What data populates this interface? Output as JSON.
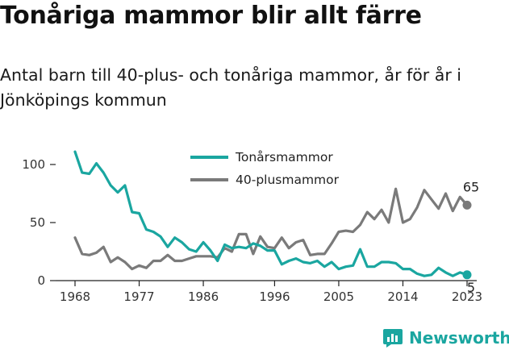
{
  "header": {
    "title": "Tonåriga mammor blir allt färre",
    "subtitle": "Antal barn till 40-plus- och tonåriga mammor, år för år i Jönköpings kommun"
  },
  "brand": {
    "name": "Newsworthy",
    "icon": "newsworthy-logo-icon",
    "color": "#1aa6a0"
  },
  "chart_data": {
    "type": "line",
    "x": [
      1968,
      1969,
      1970,
      1971,
      1972,
      1973,
      1974,
      1975,
      1976,
      1977,
      1978,
      1979,
      1980,
      1981,
      1982,
      1983,
      1984,
      1985,
      1986,
      1987,
      1988,
      1989,
      1990,
      1991,
      1992,
      1993,
      1994,
      1995,
      1996,
      1997,
      1998,
      1999,
      2000,
      2001,
      2002,
      2003,
      2004,
      2005,
      2006,
      2007,
      2008,
      2009,
      2010,
      2011,
      2012,
      2013,
      2014,
      2015,
      2016,
      2017,
      2018,
      2019,
      2020,
      2021,
      2022,
      2023
    ],
    "series": [
      {
        "name": "Tonårsmammor",
        "color": "#1aa6a0",
        "values": [
          111,
          93,
          92,
          101,
          93,
          82,
          76,
          82,
          59,
          58,
          44,
          42,
          38,
          29,
          37,
          33,
          27,
          25,
          33,
          26,
          17,
          31,
          28,
          29,
          28,
          32,
          30,
          26,
          26,
          14,
          17,
          19,
          16,
          15,
          17,
          12,
          16,
          10,
          12,
          13,
          27,
          12,
          12,
          16,
          16,
          15,
          10,
          10,
          6,
          4,
          5,
          11,
          7,
          4,
          7,
          5
        ]
      },
      {
        "name": "40-plusmammor",
        "color": "#7a7a7a",
        "values": [
          37,
          23,
          22,
          24,
          29,
          16,
          20,
          16,
          10,
          13,
          11,
          17,
          17,
          22,
          17,
          17,
          19,
          21,
          21,
          21,
          20,
          28,
          25,
          40,
          40,
          23,
          38,
          29,
          28,
          37,
          28,
          33,
          35,
          22,
          23,
          23,
          32,
          42,
          43,
          42,
          48,
          59,
          53,
          61,
          50,
          79,
          50,
          53,
          63,
          78,
          70,
          62,
          75,
          60,
          72,
          65
        ]
      }
    ],
    "xticks": [
      "1968",
      "1977",
      "1986",
      "1996",
      "2005",
      "2014",
      "2023"
    ],
    "yticks": [
      0,
      50,
      100
    ],
    "ylim": [
      0,
      118
    ],
    "end_labels": [
      "65",
      "5"
    ],
    "legend": "top-center",
    "grid": false
  }
}
